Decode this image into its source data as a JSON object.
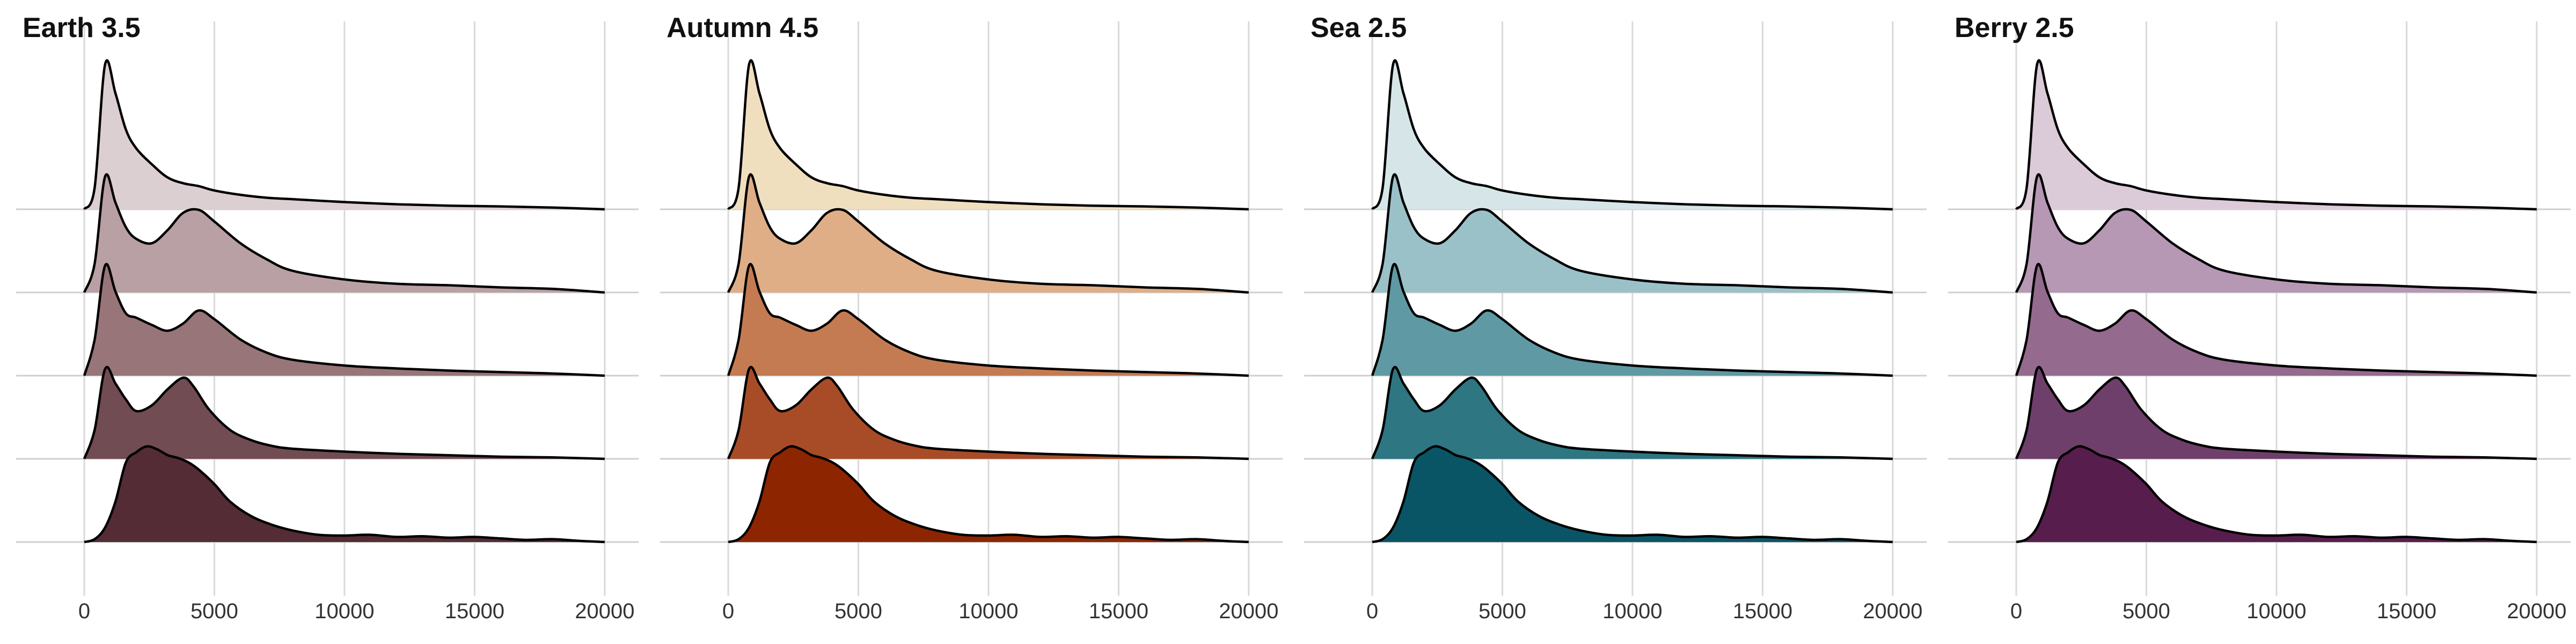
{
  "chart_data": [
    {
      "type": "area",
      "title": "Earth 3.5",
      "colors": [
        "#dccfd1",
        "#b9a0a4",
        "#977579",
        "#714c52",
        "#542c35"
      ]
    },
    {
      "type": "area",
      "title": "Autumn 4.5",
      "colors": [
        "#f0dfbf",
        "#dfae87",
        "#c57b52",
        "#a84c27",
        "#8d2600"
      ]
    },
    {
      "type": "area",
      "title": "Sea 2.5",
      "colors": [
        "#d6e6e8",
        "#9ac1c8",
        "#5f9aa4",
        "#2d7682",
        "#0a5565"
      ]
    },
    {
      "type": "area",
      "title": "Berry 2.5",
      "colors": [
        "#dbcbd8",
        "#b697b4",
        "#946a8e",
        "#6f3f6b",
        "#571e4d"
      ]
    }
  ],
  "shared": {
    "x_ticks": [
      0,
      5000,
      10000,
      15000,
      20000
    ],
    "x_tick_labels": [
      "0",
      "5000",
      "10000",
      "15000",
      "20000"
    ],
    "xlim": [
      -2000,
      21200
    ],
    "grid": "vertical",
    "ridge_baselines": [
      1,
      2,
      3,
      4,
      5
    ],
    "ridges": [
      {
        "x": [
          0,
          400,
          800,
          1200,
          1600,
          2000,
          2600,
          3200,
          3800,
          4400,
          5000,
          6000,
          7000,
          8000,
          10000,
          12000,
          14000,
          16000,
          18000,
          20000
        ],
        "y": [
          0,
          0.15,
          1.0,
          0.8,
          0.55,
          0.42,
          0.31,
          0.22,
          0.18,
          0.16,
          0.13,
          0.1,
          0.08,
          0.07,
          0.05,
          0.035,
          0.025,
          0.02,
          0.012,
          0
        ]
      },
      {
        "x": [
          0,
          400,
          800,
          1200,
          1600,
          2000,
          2600,
          3200,
          3800,
          4400,
          5000,
          6000,
          7000,
          8000,
          10000,
          12000,
          14000,
          16000,
          18000,
          20000
        ],
        "y": [
          0,
          0.2,
          0.8,
          0.62,
          0.45,
          0.37,
          0.34,
          0.43,
          0.55,
          0.57,
          0.49,
          0.34,
          0.23,
          0.15,
          0.09,
          0.06,
          0.05,
          0.035,
          0.025,
          0
        ]
      },
      {
        "x": [
          0,
          400,
          800,
          1200,
          1600,
          2000,
          2600,
          3200,
          3800,
          4400,
          5000,
          6000,
          7000,
          8000,
          10000,
          12000,
          14000,
          16000,
          18000,
          20000
        ],
        "y": [
          0,
          0.25,
          0.76,
          0.58,
          0.43,
          0.4,
          0.35,
          0.31,
          0.36,
          0.45,
          0.39,
          0.25,
          0.16,
          0.11,
          0.07,
          0.05,
          0.035,
          0.025,
          0.015,
          0
        ]
      },
      {
        "x": [
          0,
          400,
          800,
          1200,
          1600,
          2000,
          2600,
          3200,
          3800,
          4200,
          4800,
          5600,
          6400,
          7200,
          8000,
          10000,
          12000,
          14000,
          16000,
          18000,
          20000
        ],
        "y": [
          0,
          0.2,
          0.62,
          0.52,
          0.41,
          0.33,
          0.37,
          0.48,
          0.56,
          0.5,
          0.34,
          0.2,
          0.13,
          0.09,
          0.07,
          0.05,
          0.035,
          0.025,
          0.015,
          0.01,
          0
        ]
      },
      {
        "x": [
          0,
          400,
          800,
          1200,
          1600,
          2000,
          2400,
          2800,
          3200,
          3600,
          4000,
          4400,
          5000,
          5600,
          6400,
          7200,
          8000,
          9000,
          10000,
          11000,
          12000,
          13000,
          14000,
          15000,
          16000,
          17000,
          18000,
          19000,
          20000
        ],
        "y": [
          0,
          0.02,
          0.1,
          0.28,
          0.55,
          0.62,
          0.66,
          0.64,
          0.6,
          0.58,
          0.55,
          0.5,
          0.4,
          0.28,
          0.18,
          0.12,
          0.08,
          0.05,
          0.045,
          0.05,
          0.035,
          0.04,
          0.03,
          0.035,
          0.025,
          0.015,
          0.02,
          0.008,
          0
        ]
      }
    ]
  }
}
